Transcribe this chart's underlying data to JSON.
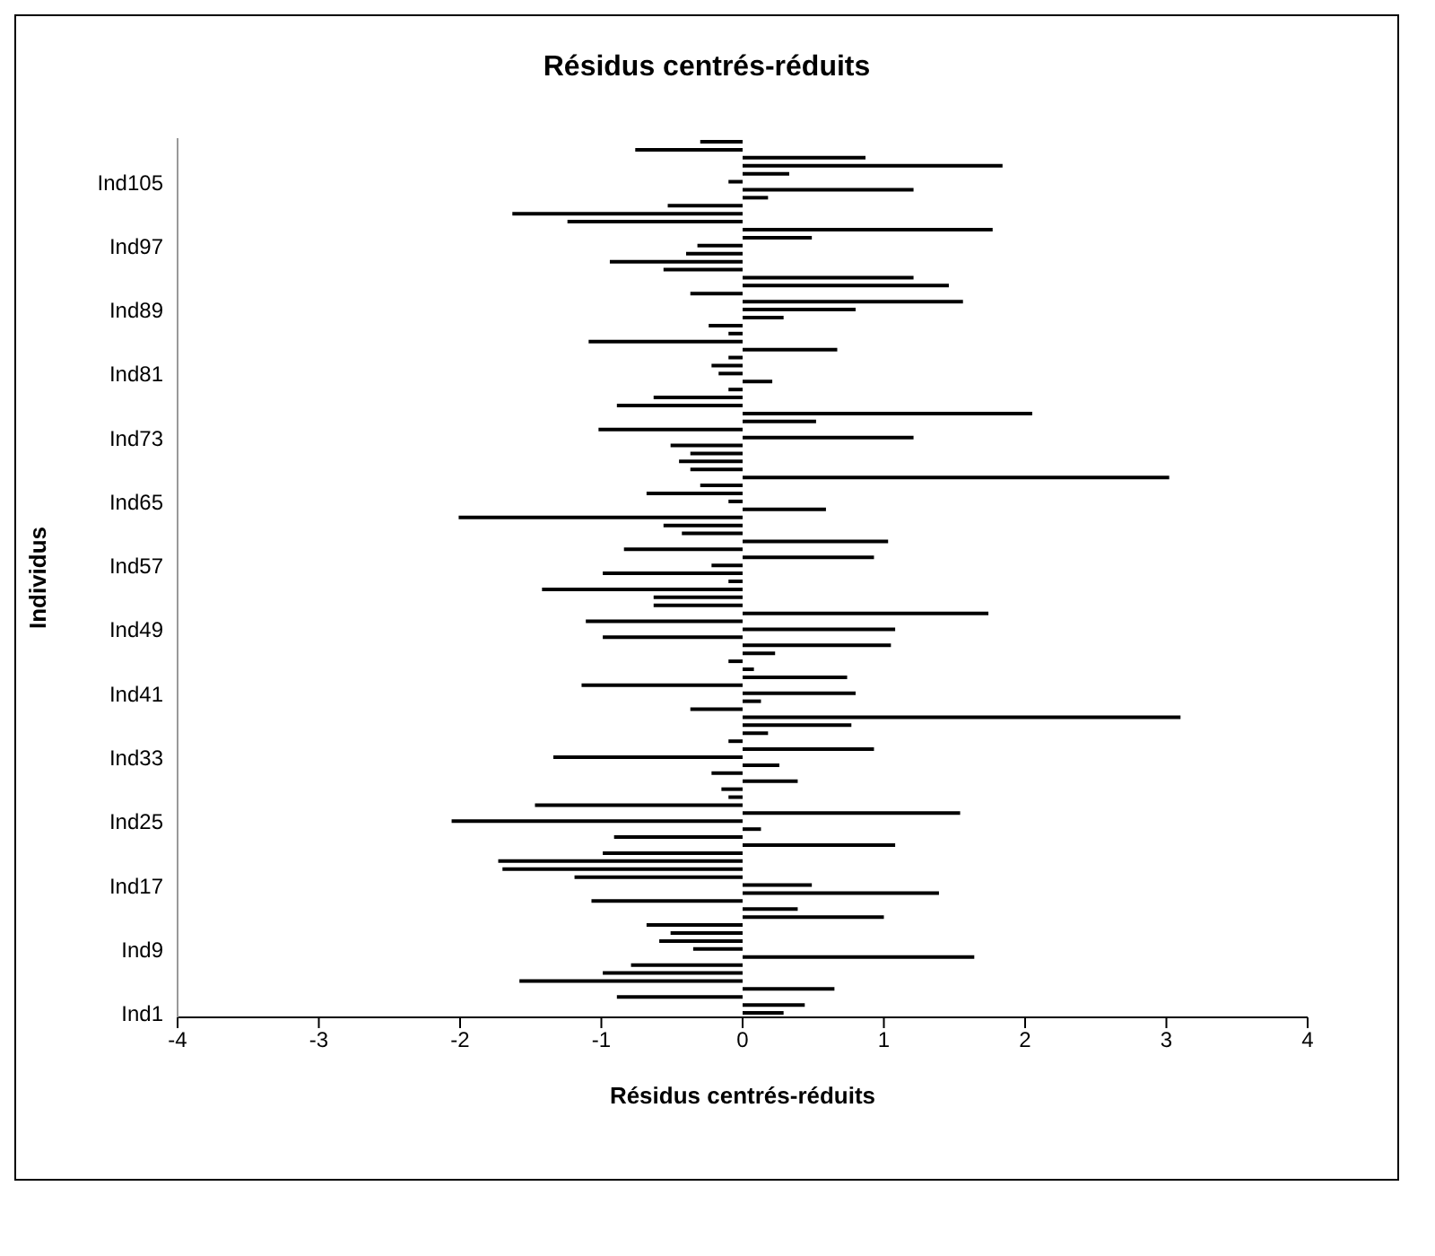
{
  "chart_data": {
    "type": "bar",
    "orientation": "horizontal",
    "title": "Résidus centrés-réduits",
    "xlabel": "Résidus centrés-réduits",
    "ylabel": "Individus",
    "categories": [
      null,
      null,
      null,
      null,
      null,
      "Ind105",
      null,
      null,
      null,
      null,
      null,
      null,
      null,
      "Ind97",
      null,
      null,
      null,
      null,
      null,
      null,
      null,
      "Ind89",
      null,
      null,
      null,
      null,
      null,
      null,
      null,
      "Ind81",
      null,
      null,
      null,
      null,
      null,
      null,
      null,
      "Ind73",
      null,
      null,
      null,
      null,
      null,
      null,
      null,
      "Ind65",
      null,
      null,
      null,
      null,
      null,
      null,
      null,
      "Ind57",
      null,
      null,
      null,
      null,
      null,
      null,
      null,
      "Ind49",
      null,
      null,
      null,
      null,
      null,
      null,
      null,
      "Ind41",
      null,
      null,
      null,
      null,
      null,
      null,
      null,
      "Ind33",
      null,
      null,
      null,
      null,
      null,
      null,
      null,
      "Ind25",
      null,
      null,
      null,
      null,
      null,
      null,
      null,
      "Ind17",
      null,
      null,
      null,
      null,
      null,
      null,
      null,
      "Ind9",
      null,
      null,
      null,
      null,
      null,
      null,
      null,
      "Ind1"
    ],
    "values": [
      -0.3,
      -0.76,
      0.87,
      1.84,
      0.33,
      -0.1,
      1.21,
      0.18,
      -0.53,
      -1.63,
      -1.24,
      1.77,
      0.49,
      -0.32,
      -0.4,
      -0.94,
      -0.56,
      1.21,
      1.46,
      -0.37,
      1.56,
      0.8,
      0.29,
      -0.24,
      -0.1,
      -1.09,
      0.67,
      -0.1,
      -0.22,
      -0.17,
      0.21,
      -0.1,
      -0.63,
      -0.89,
      2.05,
      0.52,
      -1.02,
      1.21,
      -0.51,
      -0.37,
      -0.45,
      -0.37,
      3.02,
      -0.3,
      -0.68,
      -0.1,
      0.59,
      -2.01,
      -0.56,
      -0.43,
      1.03,
      -0.84,
      0.93,
      -0.22,
      -0.99,
      -0.1,
      -1.42,
      -0.63,
      -0.63,
      1.74,
      -1.11,
      1.08,
      -0.99,
      1.05,
      0.23,
      -0.1,
      0.08,
      0.74,
      -1.14,
      0.8,
      0.13,
      -0.37,
      3.1,
      0.77,
      0.18,
      -0.1,
      0.93,
      -1.34,
      0.26,
      -0.22,
      0.39,
      -0.15,
      -0.1,
      -1.47,
      1.54,
      -2.06,
      0.13,
      -0.91,
      1.08,
      -0.99,
      -1.73,
      -1.7,
      -1.19,
      0.49,
      1.39,
      -1.07,
      0.39,
      1.0,
      -0.68,
      -0.51,
      -0.59,
      -0.35,
      1.64,
      -0.79,
      -0.99,
      -1.58,
      0.65,
      -0.89,
      0.44,
      0.29
    ],
    "color": "#000000",
    "xlim": [
      -4,
      4
    ],
    "xticks": [
      -4,
      -3,
      -2,
      -1,
      0,
      1,
      2,
      3,
      4
    ]
  }
}
